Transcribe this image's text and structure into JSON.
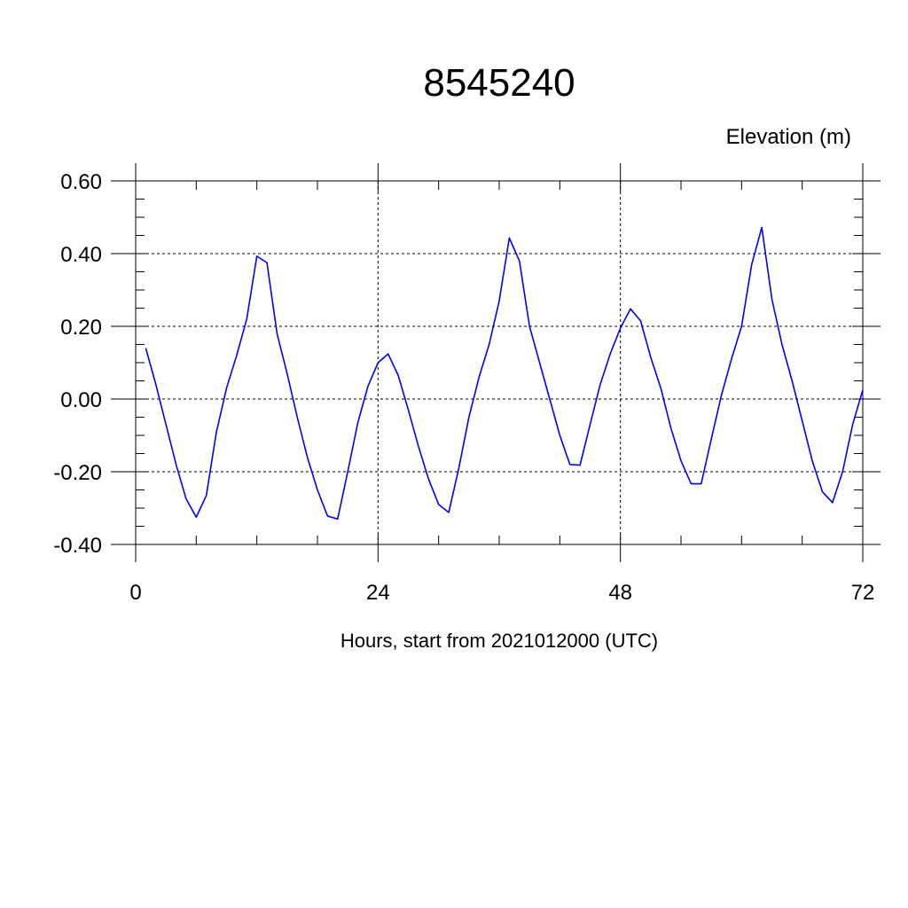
{
  "chart_data": {
    "type": "line",
    "title": "8545240",
    "subtitle": "Elevation (m)",
    "xlabel": "Hours, start from 2021012000 (UTC)",
    "ylabel": "",
    "xlim": [
      0,
      72
    ],
    "ylim": [
      -0.4,
      0.6
    ],
    "x_ticks": [
      "0",
      "24",
      "48",
      "72"
    ],
    "y_ticks": [
      "0.60",
      "0.40",
      "0.20",
      "0.00",
      "-0.20",
      "-0.40"
    ],
    "grid": true,
    "line_color": "#0000ff",
    "x": [
      1,
      2,
      3,
      4,
      5,
      6,
      7,
      8,
      9,
      10,
      11,
      12,
      13,
      14,
      15,
      16,
      17,
      18,
      19,
      20,
      21,
      22,
      23,
      24,
      25,
      26,
      27,
      28,
      29,
      30,
      31,
      32,
      33,
      34,
      35,
      36,
      37,
      38,
      39,
      40,
      41,
      42,
      43,
      44,
      45,
      46,
      47,
      48,
      49,
      50,
      51,
      52,
      53,
      54,
      55,
      56,
      57,
      58,
      59,
      60,
      61,
      62,
      63,
      64,
      65,
      66,
      67,
      68,
      69,
      70,
      71,
      72
    ],
    "series": [
      {
        "values": [
          0.14,
          0.04,
          -0.07,
          -0.18,
          -0.275,
          -0.325,
          -0.265,
          -0.09,
          0.03,
          0.12,
          0.22,
          0.393,
          0.375,
          0.18,
          0.07,
          -0.05,
          -0.16,
          -0.25,
          -0.322,
          -0.33,
          -0.2,
          -0.065,
          0.035,
          0.1,
          0.124,
          0.065,
          -0.03,
          -0.13,
          -0.22,
          -0.29,
          -0.312,
          -0.19,
          -0.05,
          0.06,
          0.15,
          0.27,
          0.443,
          0.38,
          0.2,
          0.1,
          0,
          -0.1,
          -0.18,
          -0.182,
          -0.07,
          0.04,
          0.125,
          0.195,
          0.248,
          0.215,
          0.115,
          0.03,
          -0.08,
          -0.17,
          -0.233,
          -0.233,
          -0.11,
          0.01,
          0.11,
          0.2,
          0.37,
          0.472,
          0.275,
          0.15,
          0.05,
          -0.06,
          -0.17,
          -0.255,
          -0.285,
          -0.2,
          -0.07,
          0.025
        ]
      }
    ]
  }
}
